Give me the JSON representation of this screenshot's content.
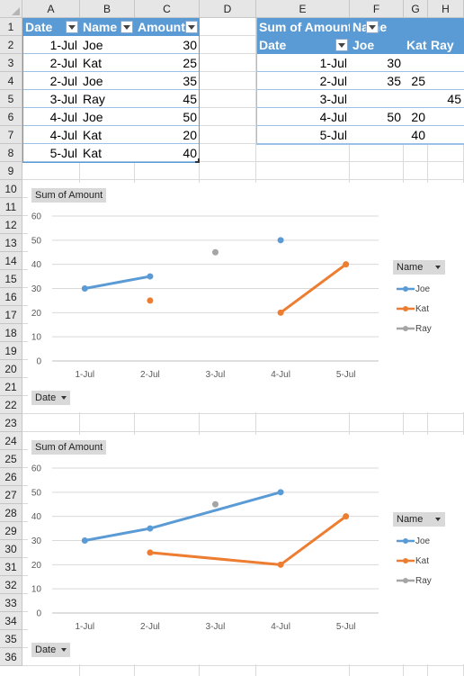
{
  "sheet": {
    "columns": [
      "A",
      "B",
      "C",
      "D",
      "E",
      "F",
      "G",
      "H"
    ],
    "rows": [
      "1",
      "2",
      "3",
      "4",
      "5",
      "6",
      "7",
      "8",
      "9",
      "10",
      "11",
      "12",
      "13",
      "14",
      "15",
      "16",
      "17",
      "18",
      "19",
      "20",
      "21",
      "22",
      "23",
      "24",
      "25",
      "26",
      "27",
      "28",
      "29",
      "30",
      "31",
      "32",
      "33",
      "34",
      "35",
      "36"
    ]
  },
  "source_table": {
    "headers": [
      "Date",
      "Name",
      "Amount"
    ],
    "rows": [
      [
        "1-Jul",
        "Joe",
        "30"
      ],
      [
        "2-Jul",
        "Kat",
        "25"
      ],
      [
        "2-Jul",
        "Joe",
        "35"
      ],
      [
        "3-Jul",
        "Ray",
        "45"
      ],
      [
        "4-Jul",
        "Joe",
        "50"
      ],
      [
        "4-Jul",
        "Kat",
        "20"
      ],
      [
        "5-Jul",
        "Kat",
        "40"
      ]
    ]
  },
  "pivot_table": {
    "values_label": "Sum of Amount",
    "columns_field": "Name",
    "rows_field": "Date",
    "col_items": [
      "Joe",
      "Kat",
      "Ray"
    ],
    "rows": [
      {
        "date": "1-Jul",
        "cells": [
          "30",
          "",
          ""
        ]
      },
      {
        "date": "2-Jul",
        "cells": [
          "35",
          "25",
          ""
        ]
      },
      {
        "date": "3-Jul",
        "cells": [
          "",
          "",
          "45"
        ]
      },
      {
        "date": "4-Jul",
        "cells": [
          "50",
          "20",
          ""
        ]
      },
      {
        "date": "5-Jul",
        "cells": [
          "",
          "40",
          ""
        ]
      }
    ]
  },
  "chart_data": [
    {
      "type": "line",
      "title": "",
      "field_button_values": "Sum of Amount",
      "field_button_axis": "Date",
      "legend_title": "Name",
      "legend_position": "right",
      "categories": [
        "1-Jul",
        "2-Jul",
        "3-Jul",
        "4-Jul",
        "5-Jul"
      ],
      "ylim": [
        0,
        60
      ],
      "yticks": [
        "0",
        "10",
        "20",
        "30",
        "40",
        "50",
        "60"
      ],
      "grid": true,
      "gaps": "gap",
      "series": [
        {
          "name": "Joe",
          "color": "#5b9bd5",
          "values": [
            30,
            35,
            null,
            50,
            null
          ]
        },
        {
          "name": "Kat",
          "color": "#ed7d31",
          "values": [
            null,
            25,
            null,
            20,
            40
          ]
        },
        {
          "name": "Ray",
          "color": "#a5a5a5",
          "values": [
            null,
            null,
            45,
            null,
            null
          ]
        }
      ]
    },
    {
      "type": "line",
      "title": "",
      "field_button_values": "Sum of Amount",
      "field_button_axis": "Date",
      "legend_title": "Name",
      "legend_position": "right",
      "categories": [
        "1-Jul",
        "2-Jul",
        "3-Jul",
        "4-Jul",
        "5-Jul"
      ],
      "ylim": [
        0,
        60
      ],
      "yticks": [
        "0",
        "10",
        "20",
        "30",
        "40",
        "50",
        "60"
      ],
      "grid": true,
      "gaps": "connect",
      "series": [
        {
          "name": "Joe",
          "color": "#5b9bd5",
          "values": [
            30,
            35,
            null,
            50,
            null
          ]
        },
        {
          "name": "Kat",
          "color": "#ed7d31",
          "values": [
            null,
            25,
            null,
            20,
            40
          ]
        },
        {
          "name": "Ray",
          "color": "#a5a5a5",
          "values": [
            null,
            null,
            45,
            null,
            null
          ]
        }
      ]
    }
  ]
}
